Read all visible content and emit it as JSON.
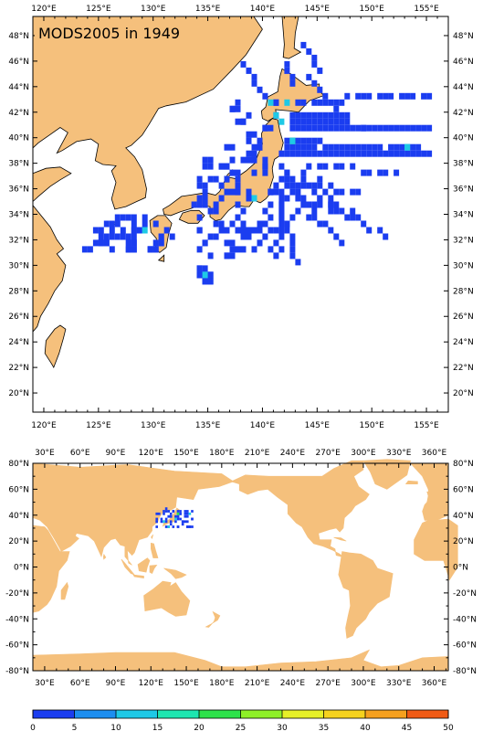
{
  "title": "MODS2005 in 1949",
  "colors": {
    "land": "#f5c07c",
    "ocean": "#ffffff",
    "coast": "#000000",
    "obs_blue": "#1b3df0",
    "obs_cyan": "#1ec9e6",
    "obs_green": "#2de24a"
  },
  "top_map": {
    "lon_range": [
      119,
      157
    ],
    "lat_range": [
      18.5,
      49.5
    ],
    "lon_labels": [
      "120°E",
      "125°E",
      "130°E",
      "135°E",
      "140°E",
      "145°E",
      "150°E",
      "155°E"
    ],
    "lat_labels": [
      "20°N",
      "22°N",
      "24°N",
      "26°N",
      "28°N",
      "30°N",
      "32°N",
      "34°N",
      "36°N",
      "38°N",
      "40°N",
      "42°N",
      "44°N",
      "46°N",
      "48°N"
    ]
  },
  "bottom_map": {
    "lon_range": [
      20,
      372
    ],
    "lat_range": [
      -80,
      80
    ],
    "lon_labels": [
      "30°E",
      "60°E",
      "90°E",
      "120°E",
      "150°E",
      "180°E",
      "210°E",
      "240°E",
      "270°E",
      "300°E",
      "330°E",
      "360°E"
    ],
    "lat_labels": [
      "80°N",
      "60°N",
      "40°N",
      "20°N",
      "0°N",
      "-20°N",
      "-40°N",
      "-60°N",
      "-80°N"
    ]
  },
  "colorbar": {
    "labels": [
      "0",
      "5",
      "10",
      "15",
      "20",
      "25",
      "30",
      "35",
      "40",
      "45",
      "50"
    ],
    "colors": [
      "#1b3df0",
      "#1c8ef0",
      "#1ec9e6",
      "#1ee6b0",
      "#2de24a",
      "#8ef028",
      "#e6f028",
      "#f5d21e",
      "#f5a01e",
      "#f05a14"
    ]
  }
}
